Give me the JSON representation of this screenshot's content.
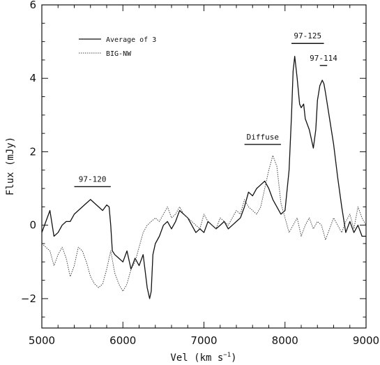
{
  "chart_data": {
    "type": "line",
    "xlabel": "Vel (km s",
    "xlabel_sup": "−1",
    "xlabel_end": ")",
    "ylabel": "Flux (mJy)",
    "xlim": [
      5000,
      9000
    ],
    "ylim": [
      -2.8,
      6
    ],
    "x_ticks": [
      5000,
      6000,
      7000,
      8000,
      9000
    ],
    "x_tick_labels": [
      "5000",
      "6000",
      "7000",
      "8000",
      "9000"
    ],
    "y_ticks": [
      -2,
      0,
      2,
      4,
      6
    ],
    "y_tick_labels": [
      "−2",
      "0",
      "2",
      "4",
      "6"
    ],
    "grid": false,
    "legend_placement": "top-left",
    "series": [
      {
        "name": "Average of 3",
        "style": "solid",
        "color": "#111111",
        "x": [
          5000,
          5050,
          5100,
          5150,
          5200,
          5250,
          5300,
          5350,
          5400,
          5450,
          5500,
          5550,
          5600,
          5650,
          5700,
          5750,
          5800,
          5830,
          5850,
          5870,
          5900,
          5950,
          6000,
          6050,
          6100,
          6150,
          6200,
          6250,
          6300,
          6330,
          6350,
          6370,
          6400,
          6450,
          6500,
          6550,
          6600,
          6650,
          6700,
          6750,
          6800,
          6850,
          6900,
          6950,
          7000,
          7050,
          7100,
          7150,
          7200,
          7250,
          7300,
          7350,
          7400,
          7450,
          7500,
          7550,
          7600,
          7650,
          7700,
          7750,
          7800,
          7850,
          7900,
          7950,
          8000,
          8050,
          8080,
          8100,
          8120,
          8150,
          8180,
          8200,
          8230,
          8250,
          8300,
          8350,
          8380,
          8400,
          8430,
          8460,
          8480,
          8500,
          8550,
          8600,
          8650,
          8700,
          8750,
          8800,
          8850,
          8900,
          8950,
          9000
        ],
        "values": [
          -0.2,
          0.1,
          0.4,
          -0.3,
          -0.2,
          0.0,
          0.1,
          0.1,
          0.3,
          0.4,
          0.5,
          0.6,
          0.7,
          0.6,
          0.5,
          0.4,
          0.55,
          0.5,
          0.0,
          -0.7,
          -0.8,
          -0.9,
          -1.0,
          -0.7,
          -1.2,
          -0.9,
          -1.1,
          -0.8,
          -1.7,
          -2.0,
          -1.8,
          -0.8,
          -0.5,
          -0.3,
          0.0,
          0.1,
          -0.1,
          0.1,
          0.4,
          0.3,
          0.2,
          0.0,
          -0.2,
          -0.1,
          -0.2,
          0.1,
          0.0,
          -0.1,
          0.0,
          0.1,
          -0.1,
          0.0,
          0.1,
          0.2,
          0.5,
          0.9,
          0.8,
          1.0,
          1.1,
          1.2,
          1.0,
          0.7,
          0.5,
          0.3,
          0.4,
          1.5,
          3.0,
          4.2,
          4.6,
          4.0,
          3.3,
          3.2,
          3.3,
          2.9,
          2.6,
          2.1,
          2.6,
          3.4,
          3.8,
          3.95,
          3.85,
          3.6,
          2.9,
          2.2,
          1.3,
          0.5,
          -0.2,
          0.1,
          -0.2,
          0.0,
          -0.3,
          -0.3
        ]
      },
      {
        "name": "BIG-NW",
        "style": "dotted",
        "color": "#444444",
        "x": [
          5000,
          5050,
          5100,
          5150,
          5200,
          5250,
          5300,
          5350,
          5400,
          5450,
          5500,
          5550,
          5600,
          5650,
          5700,
          5750,
          5800,
          5850,
          5900,
          5950,
          6000,
          6050,
          6100,
          6150,
          6200,
          6250,
          6300,
          6350,
          6400,
          6450,
          6500,
          6550,
          6600,
          6650,
          6700,
          6750,
          6800,
          6850,
          6900,
          6950,
          7000,
          7050,
          7100,
          7150,
          7200,
          7250,
          7300,
          7350,
          7400,
          7450,
          7500,
          7550,
          7600,
          7650,
          7700,
          7750,
          7800,
          7850,
          7900,
          7950,
          8000,
          8050,
          8100,
          8150,
          8200,
          8250,
          8300,
          8350,
          8400,
          8450,
          8500,
          8550,
          8600,
          8650,
          8700,
          8750,
          8800,
          8850,
          8900,
          8950,
          9000
        ],
        "values": [
          -0.5,
          -0.6,
          -0.7,
          -1.1,
          -0.8,
          -0.6,
          -0.9,
          -1.4,
          -1.1,
          -0.6,
          -0.7,
          -1.0,
          -1.4,
          -1.6,
          -1.7,
          -1.6,
          -1.2,
          -0.7,
          -1.3,
          -1.6,
          -1.8,
          -1.6,
          -1.2,
          -1.0,
          -0.6,
          -0.2,
          0.0,
          0.1,
          0.2,
          0.1,
          0.3,
          0.5,
          0.2,
          0.3,
          0.5,
          0.3,
          0.2,
          0.1,
          0.0,
          -0.1,
          0.3,
          0.1,
          0.0,
          -0.1,
          0.2,
          0.1,
          0.0,
          0.2,
          0.4,
          0.3,
          0.7,
          0.5,
          0.4,
          0.3,
          0.5,
          1.0,
          1.5,
          1.9,
          1.6,
          0.6,
          0.2,
          -0.2,
          0.0,
          0.2,
          -0.3,
          0.0,
          0.2,
          -0.1,
          0.1,
          0.0,
          -0.4,
          -0.1,
          0.2,
          0.0,
          -0.2,
          0.1,
          0.3,
          -0.1,
          0.5,
          0.2,
          0.0
        ]
      }
    ],
    "annotations": [
      {
        "label": "97-120",
        "x_start": 5400,
        "x_end": 5850,
        "y": 1.05
      },
      {
        "label": "Diffuse",
        "x_start": 7500,
        "x_end": 7950,
        "y": 2.2
      },
      {
        "label": "97-125",
        "x_start": 8080,
        "x_end": 8480,
        "y": 4.95
      },
      {
        "label": "97-114",
        "x_start": 8430,
        "x_end": 8520,
        "y": 4.35
      }
    ]
  }
}
